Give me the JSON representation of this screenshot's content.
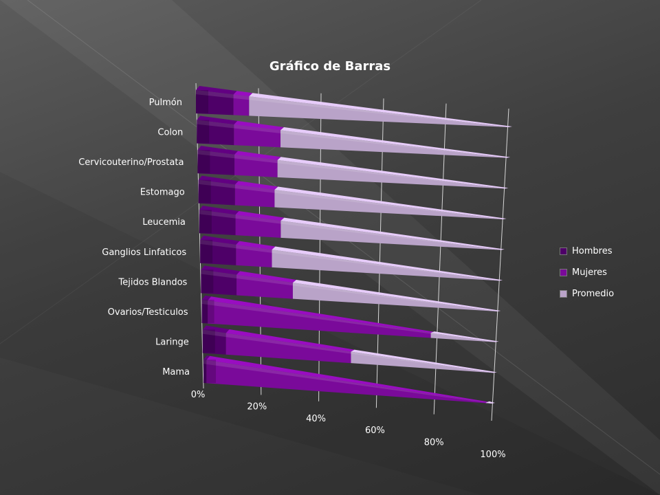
{
  "chart_data": {
    "type": "bar",
    "orientation": "horizontal",
    "stacked": "100%",
    "style": "3d-cone",
    "title": "Gráfico de Barras",
    "categories": [
      "Pulmón",
      "Colon",
      "Cervicouterino/Prostata",
      "Estomago",
      "Leucemia",
      "Ganglios Linfaticos",
      "Tejidos Blandos",
      "Ovarios/Testiculos",
      "Laringe",
      "Mama"
    ],
    "series": [
      {
        "name": "Hombres",
        "values": [
          12,
          12,
          12,
          12,
          12,
          12,
          12,
          2,
          8,
          1
        ],
        "color": "#4e0068"
      },
      {
        "name": "Mujeres",
        "values": [
          5,
          15,
          14,
          13,
          15,
          12,
          19,
          76,
          43,
          97
        ],
        "color": "#7a0a9a"
      },
      {
        "name": "Promedio",
        "values": [
          83,
          73,
          74,
          75,
          73,
          76,
          69,
          22,
          49,
          2
        ],
        "color": "#b9a3c8"
      }
    ],
    "x_ticks": [
      "0%",
      "20%",
      "40%",
      "60%",
      "80%",
      "100%"
    ],
    "xlim": [
      0,
      100
    ],
    "legend_position": "right",
    "grid": true
  },
  "colors": {
    "tick_text": "#ffffff",
    "gridline": "#d8d8d8",
    "background": "#3f3f3f"
  }
}
